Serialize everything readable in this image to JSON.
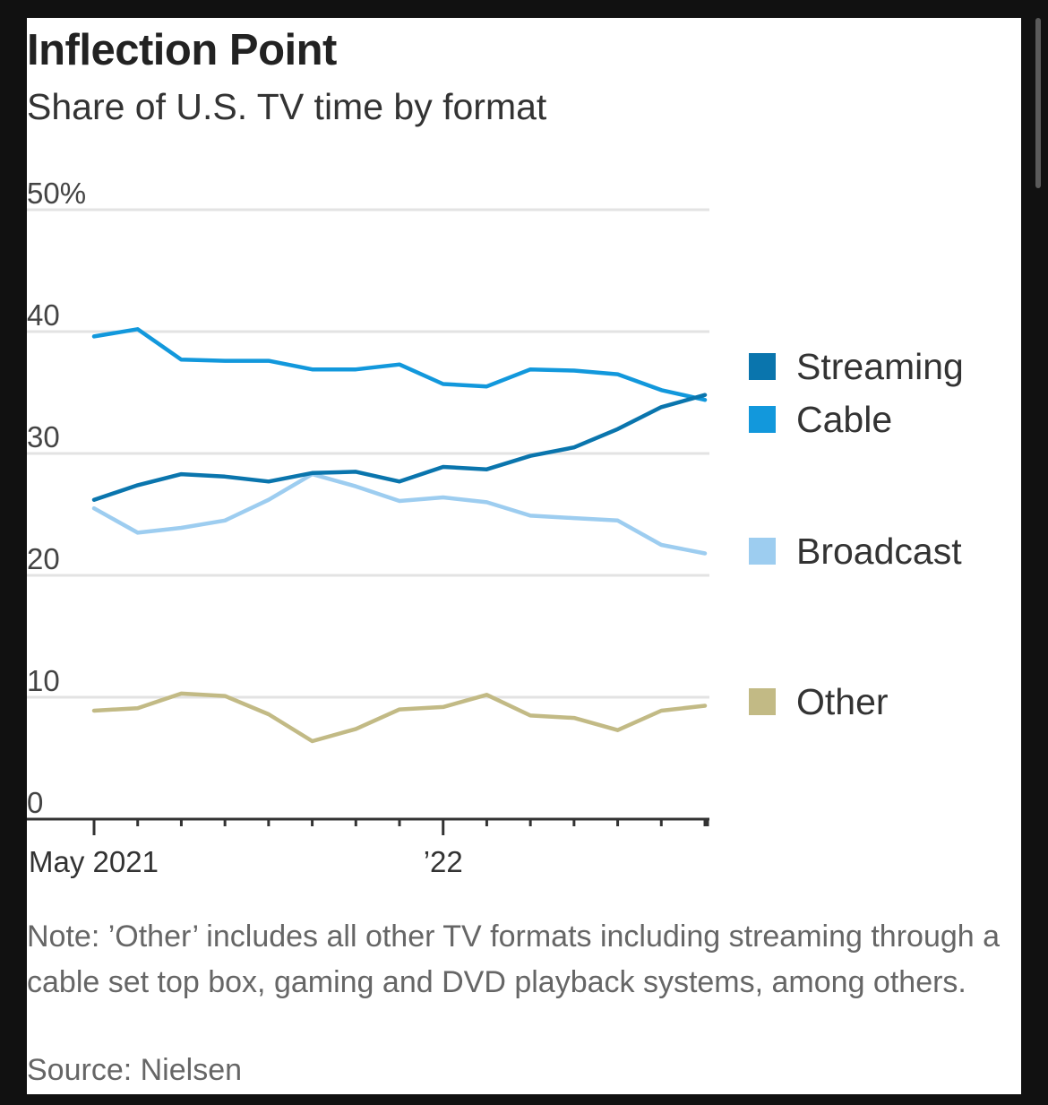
{
  "header": {
    "title": "Inflection Point",
    "subtitle": "Share of U.S. TV time by format"
  },
  "footer": {
    "note": "Note: ’Other’ includes all other TV formats including streaming through a cable set top box, gaming and DVD playback systems, among others.",
    "source": "Source: Nielsen"
  },
  "chart_data": {
    "type": "line",
    "title": "Inflection Point",
    "subtitle": "Share of U.S. TV time by format",
    "x": [
      "2021-05",
      "2021-06",
      "2021-07",
      "2021-08",
      "2021-09",
      "2021-10",
      "2021-11",
      "2021-12",
      "2022-01",
      "2022-02",
      "2022-03",
      "2022-04",
      "2022-05",
      "2022-06",
      "2022-07"
    ],
    "x_tick_labels": [
      {
        "x": "2021-05",
        "label": "May 2021"
      },
      {
        "x": "2022-01",
        "label": "’22"
      }
    ],
    "ylim": [
      0,
      50
    ],
    "y_ticks": [
      {
        "value": 0,
        "label": "0"
      },
      {
        "value": 10,
        "label": "10"
      },
      {
        "value": 20,
        "label": "20"
      },
      {
        "value": 30,
        "label": "30"
      },
      {
        "value": 40,
        "label": "40"
      },
      {
        "value": 50,
        "label": "50%"
      }
    ],
    "grid": true,
    "legend": "right",
    "series": [
      {
        "name": "Streaming",
        "color": "#0a75ad",
        "values": [
          26.2,
          27.4,
          28.3,
          28.1,
          27.7,
          28.4,
          28.5,
          27.7,
          28.9,
          28.7,
          29.8,
          30.5,
          32.0,
          33.8,
          34.8
        ]
      },
      {
        "name": "Cable",
        "color": "#1298dc",
        "values": [
          39.6,
          40.2,
          37.7,
          37.6,
          37.6,
          36.9,
          36.9,
          37.3,
          35.7,
          35.5,
          36.9,
          36.8,
          36.5,
          35.2,
          34.4
        ]
      },
      {
        "name": "Broadcast",
        "color": "#9dcdf0",
        "values": [
          25.5,
          23.5,
          23.9,
          24.5,
          26.2,
          28.3,
          27.3,
          26.1,
          26.4,
          26.0,
          24.9,
          24.7,
          24.5,
          22.5,
          21.8
        ]
      },
      {
        "name": "Other",
        "color": "#c2ba85",
        "values": [
          8.9,
          9.1,
          10.3,
          10.1,
          8.6,
          6.4,
          7.4,
          9.0,
          9.2,
          10.2,
          8.5,
          8.3,
          7.3,
          8.9,
          9.3
        ]
      }
    ]
  }
}
